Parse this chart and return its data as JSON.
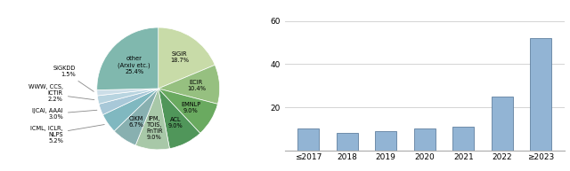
{
  "pie_sizes": [
    18.7,
    10.4,
    9.0,
    9.0,
    9.0,
    6.7,
    5.2,
    3.0,
    2.2,
    1.5,
    25.4
  ],
  "pie_colors": [
    "#c8dba8",
    "#96c080",
    "#6aaa60",
    "#50965a",
    "#a8c8a8",
    "#88b0b0",
    "#80b8c0",
    "#a8c8d8",
    "#b8d4e0",
    "#ccdee8",
    "#80b8ae"
  ],
  "bar_categories": [
    "≤2017",
    "2018",
    "2019",
    "2020",
    "2021",
    "2022",
    "≥2023"
  ],
  "bar_values": [
    10,
    8,
    9,
    10,
    11,
    25,
    52
  ],
  "bar_color": "#92b4d4",
  "bar_edge_color": "#6080a0",
  "ylim": [
    0,
    65
  ],
  "yticks": [
    0,
    20,
    40,
    60
  ],
  "bg_color": "#ffffff",
  "inside_labels": {
    "0": "SIGIR\n18.7%",
    "1": "ECIR\n10.4%",
    "2": "EMNLP\n9.0%",
    "3": "ACL\n9.0%",
    "4": "IPM,\nTOIS,\nFnTIR\n9.0%",
    "5": "CIKM\n6.7%",
    "10": "other\n(Arxiv etc.)\n25.4%"
  },
  "outside_labels": {
    "6": "ICML, ICLR,\nNLPS\n5.2%",
    "7": "IJCAI, AAAI\n3.0%",
    "8": "WWW, CCS,\nICTIR\n2.2%",
    "9": "SIGKDD\n1.5%"
  }
}
